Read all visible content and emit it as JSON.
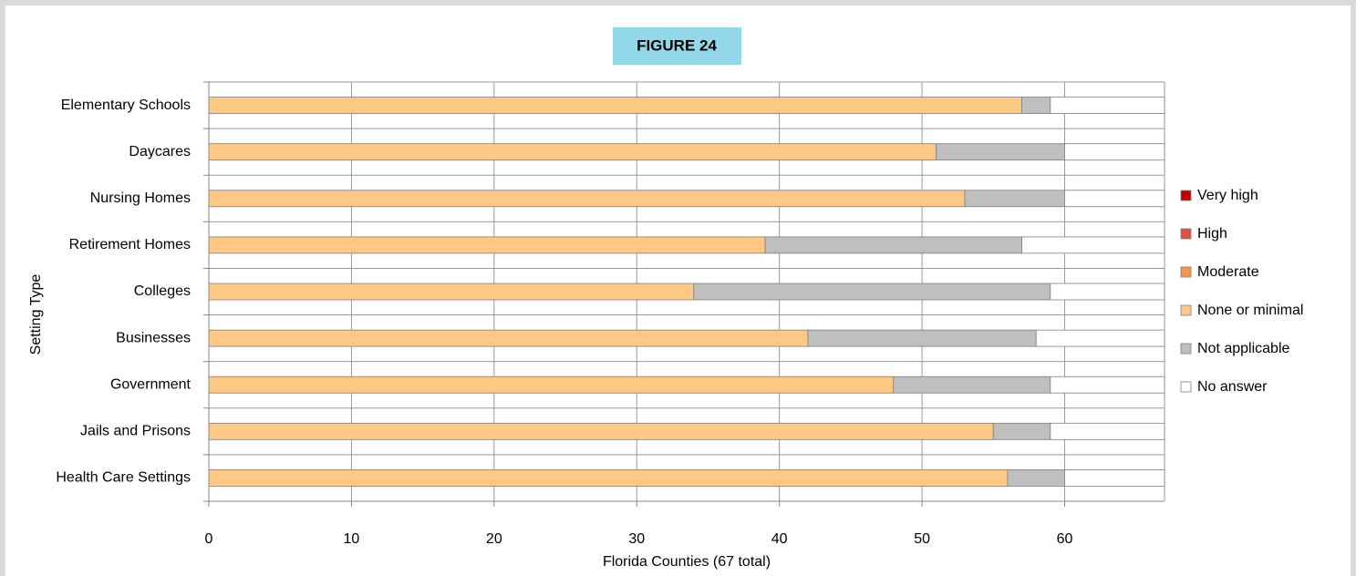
{
  "chart_data": {
    "type": "stacked-barh",
    "title": "FIGURE 24",
    "y_label": "Setting Type",
    "x_label": "Florida Counties (67 total)",
    "categories": [
      "Elementary Schools",
      "Daycares",
      "Nursing Homes",
      "Retirement Homes",
      "Colleges",
      "Businesses",
      "Government",
      "Jails and Prisons",
      "Health Care Settings"
    ],
    "series": [
      {
        "name": "Very high",
        "color": "#c00000",
        "values": [
          0,
          0,
          0,
          0,
          0,
          0,
          0,
          0,
          0
        ]
      },
      {
        "name": "High",
        "color": "#e0503c",
        "values": [
          0,
          0,
          0,
          0,
          0,
          0,
          0,
          0,
          0
        ]
      },
      {
        "name": "Moderate",
        "color": "#f79646",
        "values": [
          0,
          0,
          0,
          0,
          0,
          0,
          0,
          0,
          0
        ]
      },
      {
        "name": "None or minimal",
        "color": "#fcc883",
        "values": [
          57,
          51,
          53,
          39,
          34,
          42,
          48,
          55,
          56
        ]
      },
      {
        "name": "Not applicable",
        "color": "#bfbfbf",
        "values": [
          2,
          9,
          7,
          18,
          25,
          16,
          11,
          4,
          4
        ]
      },
      {
        "name": "No answer",
        "color": "#ffffff",
        "values": [
          8,
          7,
          7,
          10,
          8,
          9,
          8,
          8,
          7
        ]
      }
    ],
    "xlim": [
      0,
      67
    ],
    "xticks": [
      0,
      10,
      20,
      30,
      40,
      50,
      60
    ],
    "grid": true,
    "legend": "right"
  }
}
